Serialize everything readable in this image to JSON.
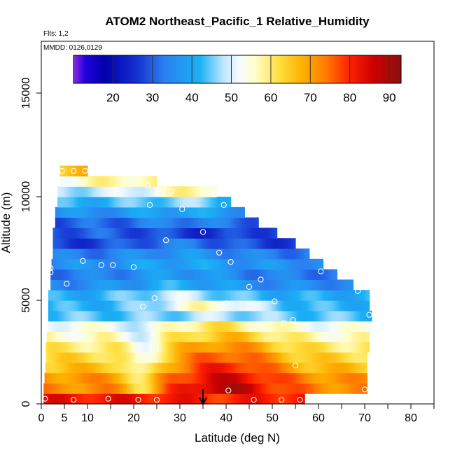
{
  "chart_data": {
    "type": "heatmap",
    "title": "ATOM2 Northeast_Pacific_1 Relative_Humidity",
    "flights_note": "Flts: 1,2",
    "date_note": "MMDD: 0126,0129",
    "xlabel": "Latitude (deg N)",
    "ylabel": "Altitude (m)",
    "xlim": [
      0,
      85
    ],
    "ylim": [
      0,
      17500
    ],
    "x_ticks": [
      0,
      5,
      10,
      20,
      30,
      40,
      50,
      60,
      70,
      80
    ],
    "x_minor_ticks": [
      15,
      25,
      35,
      45,
      55,
      65,
      75,
      85
    ],
    "y_ticks": [
      0,
      5000,
      10000,
      15000
    ],
    "colorbar": {
      "ticks": [
        20,
        30,
        40,
        50,
        60,
        70,
        80,
        90
      ],
      "range": [
        10,
        93
      ],
      "stops": [
        {
          "v": 10,
          "color": "#8a2be2"
        },
        {
          "v": 13,
          "color": "#2200dd"
        },
        {
          "v": 18,
          "color": "#0000aa"
        },
        {
          "v": 26,
          "color": "#1530d0"
        },
        {
          "v": 33,
          "color": "#2a80f0"
        },
        {
          "v": 42,
          "color": "#1ab0f5"
        },
        {
          "v": 48,
          "color": "#bfe6ff"
        },
        {
          "v": 52,
          "color": "#f5fbff"
        },
        {
          "v": 56,
          "color": "#ffffcc"
        },
        {
          "v": 62,
          "color": "#ffe040"
        },
        {
          "v": 68,
          "color": "#ffb000"
        },
        {
          "v": 74,
          "color": "#ff7a00"
        },
        {
          "v": 80,
          "color": "#ff2000"
        },
        {
          "v": 86,
          "color": "#cc0000"
        },
        {
          "v": 93,
          "color": "#8b1010"
        }
      ]
    },
    "profile_latitude": 35,
    "rows": [
      {
        "alt": 250,
        "lat_min": 0.5,
        "lat_max": 57,
        "base": 82,
        "amp": -2,
        "peak_lat": 40
      },
      {
        "alt": 750,
        "lat_min": 0.5,
        "lat_max": 70.5,
        "base": 72,
        "amp": 16,
        "peak_lat": 40,
        "dip_lat": 22,
        "dip": 10
      },
      {
        "alt": 1250,
        "lat_min": 0.7,
        "lat_max": 70.5,
        "base": 71,
        "amp": 14,
        "peak_lat": 40,
        "dip_lat": 22,
        "dip": 12
      },
      {
        "alt": 1750,
        "lat_min": 0.9,
        "lat_max": 70.5,
        "base": 66,
        "amp": 15,
        "peak_lat": 40,
        "dip_lat": 22,
        "dip": 12
      },
      {
        "alt": 2250,
        "lat_min": 1.0,
        "lat_max": 70.5,
        "base": 63,
        "amp": 14,
        "peak_lat": 40,
        "dip_lat": 22,
        "dip": 12
      },
      {
        "alt": 2750,
        "lat_min": 1.0,
        "lat_max": 71,
        "base": 60,
        "amp": 12,
        "peak_lat": 40,
        "dip_lat": 22,
        "dip": 8
      },
      {
        "alt": 3250,
        "lat_min": 1.2,
        "lat_max": 71,
        "base": 56,
        "amp": 10,
        "peak_lat": 40,
        "dip_lat": 22,
        "dip": 6
      },
      {
        "alt": 3750,
        "lat_min": 1.5,
        "lat_max": 71.5,
        "base": 53,
        "amp": 8,
        "peak_lat": 38,
        "dip_lat": 22,
        "dip": 6
      },
      {
        "alt": 4250,
        "lat_min": 1.5,
        "lat_max": 71.5,
        "base": 44,
        "amp": 4,
        "peak_lat": 38
      },
      {
        "alt": 4750,
        "lat_min": 1.5,
        "lat_max": 71,
        "base": 42,
        "amp": 14,
        "peak_lat": 36
      },
      {
        "alt": 5250,
        "lat_min": 1.5,
        "lat_max": 71,
        "base": 41,
        "amp": 8,
        "peak_lat": 30
      },
      {
        "alt": 5750,
        "lat_min": 2.0,
        "lat_max": 67.5,
        "base": 35,
        "amp": 6,
        "peak_lat": 30
      },
      {
        "alt": 6250,
        "lat_min": 2.0,
        "lat_max": 64,
        "base": 33,
        "amp": 5,
        "peak_lat": 30
      },
      {
        "alt": 6750,
        "lat_min": 2.2,
        "lat_max": 61,
        "base": 36,
        "amp": 4,
        "peak_lat": 30
      },
      {
        "alt": 7250,
        "lat_min": 2.5,
        "lat_max": 58,
        "base": 33,
        "amp": 4,
        "peak_lat": 30
      },
      {
        "alt": 7750,
        "lat_min": 2.5,
        "lat_max": 55,
        "base": 27,
        "amp": 6,
        "peak_lat": 30
      },
      {
        "alt": 8250,
        "lat_min": 2.5,
        "lat_max": 51,
        "base": 30,
        "amp": -4,
        "peak_lat": 36
      },
      {
        "alt": 8750,
        "lat_min": 3.0,
        "lat_max": 47,
        "base": 30,
        "amp": 4,
        "peak_lat": 30
      },
      {
        "alt": 9250,
        "lat_min": 3.0,
        "lat_max": 44,
        "base": 36,
        "amp": 4,
        "peak_lat": 30
      },
      {
        "alt": 9750,
        "lat_min": 3.5,
        "lat_max": 41,
        "base": 42,
        "amp": 4,
        "peak_lat": 30
      },
      {
        "alt": 10250,
        "lat_min": 3.5,
        "lat_max": 38,
        "base": 48,
        "amp": 10,
        "peak_lat": 34
      },
      {
        "alt": 10750,
        "lat_min": 4.0,
        "lat_max": 25,
        "base": 54,
        "amp": 4,
        "peak_lat": 20
      },
      {
        "alt": 11250,
        "lat_min": 4.0,
        "lat_max": 10,
        "base": 64,
        "amp": 2,
        "peak_lat": 7
      }
    ],
    "obs_points": [
      {
        "lat": 0.8,
        "alt": 250
      },
      {
        "lat": 7,
        "alt": 200
      },
      {
        "lat": 14.5,
        "alt": 250
      },
      {
        "lat": 21,
        "alt": 200
      },
      {
        "lat": 25,
        "alt": 200
      },
      {
        "lat": 40.5,
        "alt": 650
      },
      {
        "lat": 46,
        "alt": 200
      },
      {
        "lat": 52,
        "alt": 200
      },
      {
        "lat": 56,
        "alt": 200
      },
      {
        "lat": 70,
        "alt": 700
      },
      {
        "lat": 55,
        "alt": 1850
      },
      {
        "lat": 40,
        "alt": 4850
      },
      {
        "lat": 22,
        "alt": 4700
      },
      {
        "lat": 24.5,
        "alt": 5100
      },
      {
        "lat": 50.5,
        "alt": 4950
      },
      {
        "lat": 52.5,
        "alt": 3900
      },
      {
        "lat": 54.5,
        "alt": 4050
      },
      {
        "lat": 71,
        "alt": 4300
      },
      {
        "lat": 68.5,
        "alt": 5450
      },
      {
        "lat": 45,
        "alt": 5650
      },
      {
        "lat": 47.5,
        "alt": 6000
      },
      {
        "lat": 5.5,
        "alt": 5800
      },
      {
        "lat": 2,
        "alt": 6350
      },
      {
        "lat": 2,
        "alt": 6550
      },
      {
        "lat": 9,
        "alt": 6900
      },
      {
        "lat": 13,
        "alt": 6700
      },
      {
        "lat": 15.5,
        "alt": 6700
      },
      {
        "lat": 20,
        "alt": 6600
      },
      {
        "lat": 27,
        "alt": 7900
      },
      {
        "lat": 35,
        "alt": 8300
      },
      {
        "lat": 38.5,
        "alt": 7300
      },
      {
        "lat": 41,
        "alt": 6850
      },
      {
        "lat": 60.5,
        "alt": 6400
      },
      {
        "lat": 30.5,
        "alt": 9400
      },
      {
        "lat": 23.5,
        "alt": 9600
      },
      {
        "lat": 39.5,
        "alt": 9600
      },
      {
        "lat": 28,
        "alt": 10250
      },
      {
        "lat": 37.5,
        "alt": 10100
      },
      {
        "lat": 23,
        "alt": 10550
      },
      {
        "lat": 4.5,
        "alt": 11250
      },
      {
        "lat": 7,
        "alt": 11250
      },
      {
        "lat": 9.5,
        "alt": 11250
      }
    ]
  }
}
